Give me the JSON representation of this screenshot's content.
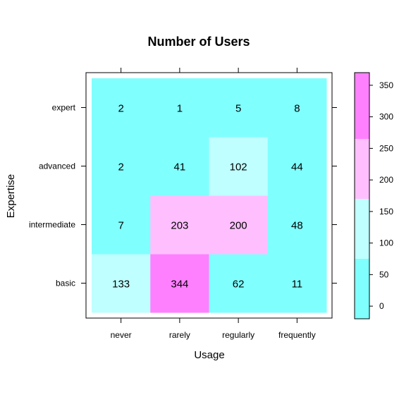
{
  "chart_data": {
    "type": "heatmap",
    "title": "Number of Users",
    "xlabel": "Usage",
    "ylabel": "Expertise",
    "x_categories": [
      "never",
      "rarely",
      "regularly",
      "frequently"
    ],
    "y_categories": [
      "basic",
      "intermediate",
      "advanced",
      "expert"
    ],
    "values": [
      [
        133,
        344,
        62,
        11
      ],
      [
        7,
        203,
        200,
        48
      ],
      [
        2,
        41,
        102,
        44
      ],
      [
        2,
        1,
        5,
        8
      ]
    ],
    "colorbar": {
      "ticks": [
        0,
        50,
        100,
        150,
        200,
        250,
        300,
        350
      ],
      "range": [
        -20,
        370
      ],
      "bins": [
        {
          "from": -20,
          "to": 75,
          "color": "#80FFFF"
        },
        {
          "from": 75,
          "to": 170,
          "color": "#BFFFFF"
        },
        {
          "from": 170,
          "to": 265,
          "color": "#FFBFFF"
        },
        {
          "from": 265,
          "to": 370,
          "color": "#FF80FF"
        }
      ]
    },
    "grid": false,
    "legend_position": "right"
  }
}
